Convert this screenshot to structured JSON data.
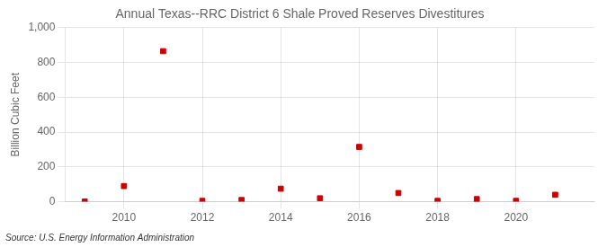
{
  "chart_data": {
    "type": "scatter",
    "title": "Annual Texas--RRC District 6 Shale Proved Reserves Divestitures",
    "ylabel": "Billion Cubic Feet",
    "annotations": [
      "Source: U.S. Energy Information Administration"
    ],
    "x": [
      2009,
      2010,
      2011,
      2012,
      2013,
      2014,
      2015,
      2016,
      2017,
      2018,
      2019,
      2020,
      2021
    ],
    "values": [
      1,
      90,
      865,
      5,
      10,
      75,
      20,
      315,
      50,
      5,
      15,
      5,
      40
    ],
    "color": "#cc0000",
    "marker": "square",
    "xlim": [
      2008.5,
      2022.0
    ],
    "xticks": [
      2010,
      2012,
      2014,
      2016,
      2018,
      2020
    ],
    "ylim": [
      0,
      1000
    ],
    "yticks": [
      0,
      200,
      400,
      600,
      800,
      {
        "value": 1000,
        "label": "1,000"
      }
    ],
    "grid": true
  }
}
